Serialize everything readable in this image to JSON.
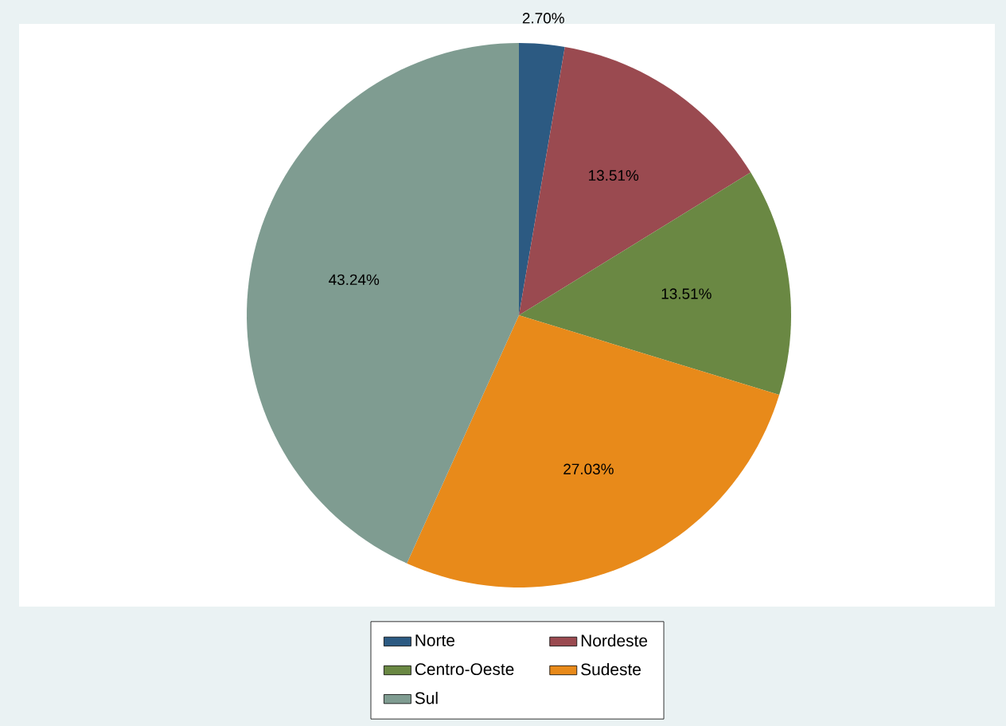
{
  "chart_data": {
    "type": "pie",
    "categories": [
      "Norte",
      "Nordeste",
      "Centro-Oeste",
      "Sudeste",
      "Sul"
    ],
    "values": [
      2.7,
      13.51,
      13.51,
      27.03,
      43.24
    ],
    "colors": [
      "#2c5a82",
      "#9a4a50",
      "#6a8843",
      "#e88a1a",
      "#7f9c91"
    ],
    "value_labels": [
      "2.70%",
      "13.51%",
      "13.51%",
      "27.03%",
      "43.24%"
    ],
    "legend": "bottom"
  }
}
